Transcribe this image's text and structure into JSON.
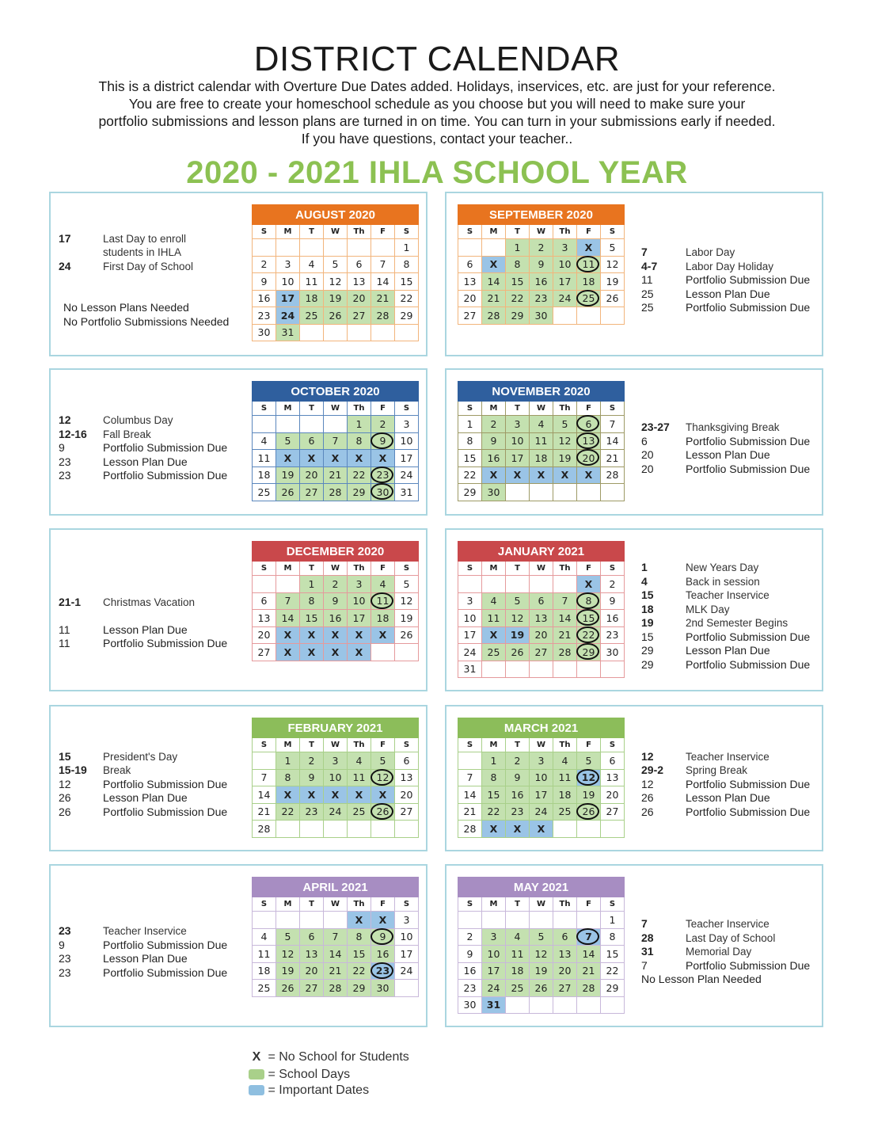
{
  "title": "DISTRICT CALENDAR",
  "intro": [
    "This is a district calendar with Overture Due Dates added. Holidays, inservices, etc. are just for your reference.",
    "You are free to create your homeschool schedule as you choose but you will need to make sure your",
    "portfolio submissions and lesson plans are turned in on time. You can turn in your submissions early if needed.",
    "If you have questions, contact your teacher.."
  ],
  "year_title": "2020 - 2021 IHLA SCHOOL YEAR",
  "weekdays": [
    "S",
    "M",
    "T",
    "W",
    "Th",
    "F",
    "S"
  ],
  "colors": {
    "school_day": "#c4e1b0",
    "important": "#9ac4e6",
    "title_green": "#8cc152",
    "panel_border": "#aad6e0"
  },
  "months": [
    {
      "name": "AUGUST 2020",
      "color": "#e8741f",
      "grid": "#f2b57c",
      "start": 6,
      "days": 31,
      "school": [
        17,
        18,
        19,
        20,
        21,
        24,
        25,
        26,
        27,
        28,
        31
      ],
      "important": [
        17,
        24
      ],
      "circles": [],
      "x": [],
      "side": "right",
      "notes": [
        {
          "k": "17",
          "t": "Last Day to enroll",
          "b": true,
          "o": "events"
        },
        {
          "k": "",
          "t": "students in IHLA",
          "b": true,
          "o": "events"
        },
        {
          "k": "24",
          "t": "First Day of School",
          "b": true,
          "o": "events"
        },
        {
          "gap": true
        },
        {
          "gap": true
        },
        {
          "k": "",
          "t": "No Lesson Plans Needed",
          "b": false,
          "o": "due"
        },
        {
          "k": "",
          "t": "No Portfolio Submissions Needed",
          "b": false,
          "o": "due"
        }
      ]
    },
    {
      "name": "SEPTEMBER 2020",
      "color": "#e8741f",
      "grid": "#f2b57c",
      "start": 2,
      "days": 30,
      "school": [
        1,
        2,
        3,
        8,
        9,
        10,
        11,
        14,
        15,
        16,
        17,
        18,
        21,
        22,
        23,
        24,
        25,
        28,
        29,
        30
      ],
      "important": [
        4,
        7
      ],
      "circles": [
        11,
        25
      ],
      "x": [
        4,
        7
      ],
      "side": "left",
      "notes": [
        {
          "k": "7",
          "t": "Labor Day",
          "b": true,
          "o": "events"
        },
        {
          "k": "4-7",
          "t": "Labor Day Holiday",
          "b": true,
          "o": "events"
        },
        {
          "k": "11",
          "t": "Portfolio Submission Due",
          "b": false,
          "o": "due"
        },
        {
          "k": "25",
          "t": "Lesson Plan Due",
          "b": false,
          "o": "due"
        },
        {
          "k": "25",
          "t": "Portfolio Submission Due",
          "b": false,
          "o": "due"
        }
      ]
    },
    {
      "name": "OCTOBER 2020",
      "color": "#2f5f9e",
      "grid": "#5b87bd",
      "start": 4,
      "days": 31,
      "school": [
        1,
        2,
        5,
        6,
        7,
        8,
        9,
        19,
        20,
        21,
        22,
        23,
        26,
        27,
        28,
        29,
        30
      ],
      "important": [
        12,
        13,
        14,
        15,
        16
      ],
      "circles": [
        9,
        23,
        30
      ],
      "x": [
        12,
        13,
        14,
        15,
        16
      ],
      "side": "right",
      "notes": [
        {
          "k": "12",
          "t": "Columbus Day",
          "b": true,
          "o": "events"
        },
        {
          "k": "12-16",
          "t": "Fall Break",
          "b": true,
          "o": "events"
        },
        {
          "k": "9",
          "t": "Portfolio Submission Due",
          "b": false,
          "o": "due"
        },
        {
          "k": "23",
          "t": "Lesson Plan Due",
          "b": false,
          "o": "due"
        },
        {
          "k": "23",
          "t": "Portfolio Submission Due",
          "b": false,
          "o": "due"
        }
      ]
    },
    {
      "name": "NOVEMBER 2020",
      "color": "#2f5f9e",
      "grid": "#9e9a66",
      "start": 0,
      "days": 30,
      "school": [
        2,
        3,
        4,
        5,
        6,
        9,
        10,
        11,
        12,
        13,
        16,
        17,
        18,
        19,
        20,
        30
      ],
      "important": [
        23,
        24,
        25,
        26,
        27
      ],
      "circles": [
        6,
        13,
        20
      ],
      "x": [
        23,
        24,
        25,
        26,
        27
      ],
      "side": "left",
      "notes": [
        {
          "k": "23-27",
          "t": "Thanksgiving Break",
          "b": true,
          "o": "events"
        },
        {
          "k": "6",
          "t": "Portfolio Submission Due",
          "b": false,
          "o": "due"
        },
        {
          "k": "20",
          "t": "Lesson Plan Due",
          "b": false,
          "o": "due"
        },
        {
          "k": "20",
          "t": "Portfolio Submission Due",
          "b": false,
          "o": "due"
        }
      ]
    },
    {
      "name": "DECEMBER 2020",
      "color": "#c9484b",
      "grid": "#e59a9c",
      "start": 2,
      "days": 31,
      "school": [
        1,
        2,
        3,
        4,
        7,
        8,
        9,
        10,
        11,
        14,
        15,
        16,
        17,
        18
      ],
      "important": [
        21,
        22,
        23,
        24,
        25,
        28,
        29,
        30,
        31
      ],
      "circles": [
        11
      ],
      "x": [
        21,
        22,
        23,
        24,
        25,
        28,
        29,
        30,
        31
      ],
      "side": "right",
      "notes": [
        {
          "gap": true
        },
        {
          "k": "21-1",
          "t": "Christmas Vacation",
          "b": true,
          "o": "events"
        },
        {
          "gap": true
        },
        {
          "k": "11",
          "t": "Lesson Plan Due",
          "b": false,
          "o": "due"
        },
        {
          "k": "11",
          "t": "Portfolio Submission Due",
          "b": false,
          "o": "due"
        }
      ]
    },
    {
      "name": "JANUARY 2021",
      "color": "#c9484b",
      "grid": "#e59a9c",
      "start": 5,
      "days": 31,
      "school": [
        4,
        5,
        6,
        7,
        8,
        11,
        12,
        13,
        14,
        15,
        20,
        21,
        22,
        25,
        26,
        27,
        28,
        29
      ],
      "important": [
        1,
        18,
        19
      ],
      "circles": [
        8,
        15,
        22,
        29
      ],
      "x": [
        1,
        18
      ],
      "side": "left",
      "notes": [
        {
          "k": "1",
          "t": "New Years Day",
          "b": true,
          "o": "events"
        },
        {
          "k": "4",
          "t": "Back in session",
          "b": true,
          "o": "events"
        },
        {
          "k": "15",
          "t": "Teacher Inservice",
          "b": true,
          "o": "events"
        },
        {
          "k": "18",
          "t": "MLK Day",
          "b": true,
          "o": "events"
        },
        {
          "k": "19",
          "t": "2nd Semester Begins",
          "b": true,
          "o": "events"
        },
        {
          "k": "15",
          "t": "Portfolio Submission Due",
          "b": false,
          "o": "due"
        },
        {
          "k": "29",
          "t": "Lesson Plan Due",
          "b": false,
          "o": "due"
        },
        {
          "k": "29",
          "t": "Portfolio Submission Due",
          "b": false,
          "o": "due"
        }
      ]
    },
    {
      "name": "FEBRUARY 2021",
      "color": "#8cbd5a",
      "grid": "#a9d08a",
      "start": 1,
      "days": 28,
      "school": [
        1,
        2,
        3,
        4,
        5,
        8,
        9,
        10,
        11,
        12,
        22,
        23,
        24,
        25,
        26
      ],
      "important": [
        15,
        16,
        17,
        18,
        19
      ],
      "circles": [
        12,
        26
      ],
      "x": [
        15,
        16,
        17,
        18,
        19
      ],
      "side": "right",
      "notes": [
        {
          "k": "15",
          "t": "President's Day",
          "b": true,
          "o": "events"
        },
        {
          "k": "15-19",
          "t": "Break",
          "b": true,
          "o": "events"
        },
        {
          "k": "12",
          "t": "Portfolio Submission Due",
          "b": false,
          "o": "due"
        },
        {
          "k": "26",
          "t": "Lesson Plan Due",
          "b": false,
          "o": "due"
        },
        {
          "k": "26",
          "t": "Portfolio Submission Due",
          "b": false,
          "o": "due"
        }
      ]
    },
    {
      "name": "MARCH 2021",
      "color": "#8cbd5a",
      "grid": "#a9d08a",
      "start": 1,
      "days": 31,
      "school": [
        1,
        2,
        3,
        4,
        5,
        8,
        9,
        10,
        11,
        15,
        16,
        17,
        18,
        19,
        22,
        23,
        24,
        25,
        26
      ],
      "important": [
        12,
        29,
        30,
        31
      ],
      "circles": [
        12,
        26
      ],
      "x": [
        29,
        30,
        31
      ],
      "side": "left",
      "notes": [
        {
          "k": "12",
          "t": "Teacher Inservice",
          "b": true,
          "o": "events"
        },
        {
          "k": "29-2",
          "t": "Spring Break",
          "b": true,
          "o": "events"
        },
        {
          "k": "12",
          "t": "Portfolio Submission Due",
          "b": false,
          "o": "due"
        },
        {
          "k": "26",
          "t": "Lesson Plan Due",
          "b": false,
          "o": "due"
        },
        {
          "k": "26",
          "t": "Portfolio Submission Due",
          "b": false,
          "o": "due"
        }
      ]
    },
    {
      "name": "APRIL 2021",
      "color": "#a78dc2",
      "grid": "#c8b8da",
      "start": 4,
      "days": 30,
      "school": [
        5,
        6,
        7,
        8,
        9,
        12,
        13,
        14,
        15,
        16,
        19,
        20,
        21,
        22,
        26,
        27,
        28,
        29,
        30
      ],
      "important": [
        1,
        2,
        23
      ],
      "circles": [
        9,
        23
      ],
      "x": [
        1,
        2
      ],
      "side": "right",
      "notes": [
        {
          "k": "23",
          "t": "Teacher Inservice",
          "b": true,
          "o": "events"
        },
        {
          "k": "9",
          "t": "Portfolio Submission Due",
          "b": false,
          "o": "due"
        },
        {
          "k": "23",
          "t": "Lesson Plan Due",
          "b": false,
          "o": "due"
        },
        {
          "k": "23",
          "t": "Portfolio Submission Due",
          "b": false,
          "o": "due"
        }
      ]
    },
    {
      "name": "MAY 2021",
      "color": "#a78dc2",
      "grid": "#c8b8da",
      "start": 6,
      "days": 31,
      "school": [
        3,
        4,
        5,
        6,
        10,
        11,
        12,
        13,
        14,
        17,
        18,
        19,
        20,
        21,
        24,
        25,
        26,
        27,
        28
      ],
      "important": [
        7,
        31
      ],
      "circles": [
        7
      ],
      "x": [],
      "side": "left",
      "notes": [
        {
          "k": "7",
          "t": "Teacher Inservice",
          "b": true,
          "o": "events"
        },
        {
          "k": "28",
          "t": "Last Day of School",
          "b": true,
          "o": "events"
        },
        {
          "k": "31",
          "t": "Memorial Day",
          "b": true,
          "o": "events"
        },
        {
          "k": "7",
          "t": "Portfolio Submission Due",
          "b": false,
          "o": "due"
        },
        {
          "k": "",
          "t": "No Lesson Plan Needed",
          "b": false,
          "o": "due"
        }
      ]
    }
  ],
  "legend": {
    "x_mark": "X",
    "no_school": "= No School for Students",
    "school_days": "= School Days",
    "important_dates": "= Important Dates"
  }
}
